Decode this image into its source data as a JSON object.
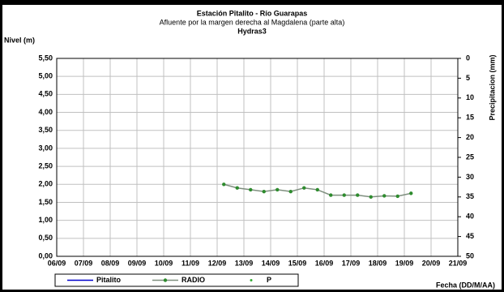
{
  "chart_data": {
    "type": "line",
    "title": "Estación Pitalito  - Río Guarapas",
    "subtitle": "Afluente por la margen derecha al Magdalena (parte alta)",
    "subtitle2": "Hydras3",
    "y_label": "Nivel (m)",
    "y2_label": "Precipitacion (mm)",
    "x_label": "Fecha (DD/M/AA)",
    "x": [
      12.25,
      12.75,
      13.25,
      13.75,
      14.25,
      14.75,
      15.25,
      15.75,
      16.25,
      16.75,
      17.25,
      17.75,
      18.25,
      18.75,
      19.25
    ],
    "series": [
      {
        "name": "Pitalito",
        "color": "#0000cc",
        "values": [
          null,
          null,
          null,
          null,
          null,
          null,
          null,
          null,
          null,
          null,
          null,
          null,
          null,
          null,
          null
        ]
      },
      {
        "name": "RADIO",
        "color": "#2e8b2e",
        "line_color": "#7f8f7f",
        "values": [
          2.0,
          1.9,
          1.85,
          1.8,
          1.85,
          1.8,
          1.9,
          1.85,
          1.7,
          1.7,
          1.7,
          1.65,
          1.68,
          1.67,
          1.75
        ]
      },
      {
        "name": "P",
        "color": "#33aa33",
        "axis": "y2",
        "values": [
          null,
          null,
          null,
          null,
          null,
          null,
          null,
          null,
          null,
          null,
          null,
          null,
          null,
          null,
          null
        ]
      }
    ],
    "xlim": [
      6,
      21
    ],
    "xticks": [
      {
        "value": 6,
        "label": "06/09"
      },
      {
        "value": 7,
        "label": "07/09"
      },
      {
        "value": 8,
        "label": "08/09"
      },
      {
        "value": 9,
        "label": "09/09"
      },
      {
        "value": 10,
        "label": "10/09"
      },
      {
        "value": 11,
        "label": "11/09"
      },
      {
        "value": 12,
        "label": "12/09"
      },
      {
        "value": 13,
        "label": "13/09"
      },
      {
        "value": 14,
        "label": "14/09"
      },
      {
        "value": 15,
        "label": "15/09"
      },
      {
        "value": 16,
        "label": "16/09"
      },
      {
        "value": 17,
        "label": "17/09"
      },
      {
        "value": 18,
        "label": "18/09"
      },
      {
        "value": 19,
        "label": "19/09"
      },
      {
        "value": 20,
        "label": "20/09"
      },
      {
        "value": 21,
        "label": "21/09"
      }
    ],
    "ylim": [
      0,
      5.5
    ],
    "yticks": [
      {
        "value": 0,
        "label": "0,00"
      },
      {
        "value": 0.5,
        "label": "0,50"
      },
      {
        "value": 1,
        "label": "1,00"
      },
      {
        "value": 1.5,
        "label": "1,50"
      },
      {
        "value": 2,
        "label": "2,00"
      },
      {
        "value": 2.5,
        "label": "2,50"
      },
      {
        "value": 3,
        "label": "3,00"
      },
      {
        "value": 3.5,
        "label": "3,50"
      },
      {
        "value": 4,
        "label": "4,00"
      },
      {
        "value": 4.5,
        "label": "4,50"
      },
      {
        "value": 5,
        "label": "5,00"
      },
      {
        "value": 5.5,
        "label": "5,50"
      }
    ],
    "y2lim": [
      50,
      0
    ],
    "y2ticks": [
      0,
      5,
      10,
      15,
      20,
      25,
      30,
      35,
      40,
      45,
      50
    ],
    "grid": true
  }
}
